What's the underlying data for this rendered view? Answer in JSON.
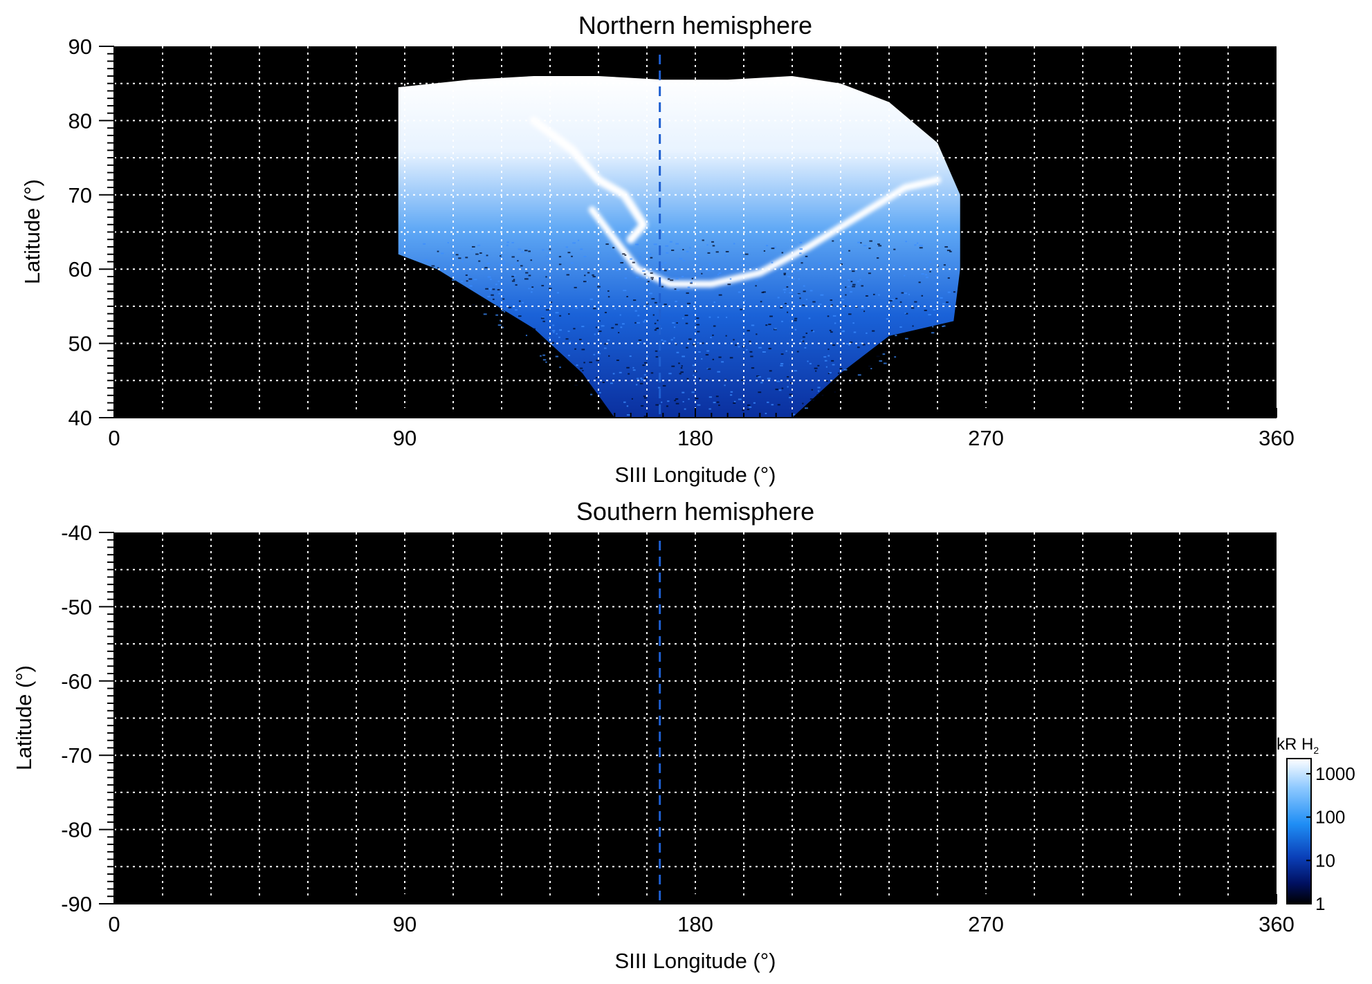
{
  "chart_data": [
    {
      "type": "heatmap",
      "title": "Northern hemisphere",
      "xlabel": "SIII Longitude (°)",
      "ylabel": "Latitude (°)",
      "xlim": [
        0,
        360
      ],
      "ylim": [
        40,
        90
      ],
      "xticks": [
        0,
        90,
        180,
        270,
        360
      ],
      "yticks": [
        40,
        50,
        60,
        70,
        80,
        90
      ],
      "grid": true,
      "background": "#000000",
      "reference_longitude": 169,
      "reference_line_color": "#1e5fd0",
      "emission_region": {
        "description_free": true,
        "upper_boundary": [
          [
            88,
            84.5
          ],
          [
            110,
            85.5
          ],
          [
            130,
            86
          ],
          [
            150,
            86
          ],
          [
            170,
            85.5
          ],
          [
            190,
            85.5
          ],
          [
            210,
            86
          ],
          [
            225,
            85
          ],
          [
            240,
            82.5
          ],
          [
            255,
            77
          ],
          [
            262,
            70
          ],
          [
            262,
            60
          ],
          [
            260,
            53
          ]
        ],
        "lower_boundary": [
          [
            88,
            62
          ],
          [
            100,
            60
          ],
          [
            115,
            56
          ],
          [
            130,
            52
          ],
          [
            145,
            46
          ],
          [
            155,
            40
          ],
          [
            210,
            40
          ],
          [
            225,
            46
          ],
          [
            240,
            51
          ],
          [
            260,
            53
          ]
        ]
      },
      "main_oval": [
        [
          148,
          68
        ],
        [
          155,
          64
        ],
        [
          162,
          60
        ],
        [
          172,
          58
        ],
        [
          185,
          58
        ],
        [
          200,
          59.5
        ],
        [
          215,
          63
        ],
        [
          230,
          67
        ],
        [
          245,
          71
        ],
        [
          255,
          72
        ]
      ],
      "swirl_arc": [
        [
          130,
          80
        ],
        [
          142,
          76
        ],
        [
          150,
          72
        ],
        [
          158,
          70
        ],
        [
          164,
          66
        ],
        [
          160,
          64
        ]
      ]
    },
    {
      "type": "heatmap",
      "title": "Southern hemisphere",
      "xlabel": "SIII Longitude (°)",
      "ylabel": "Latitude (°)",
      "xlim": [
        0,
        360
      ],
      "ylim": [
        -90,
        -40
      ],
      "xticks": [
        0,
        90,
        180,
        270,
        360
      ],
      "yticks": [
        -90,
        -80,
        -70,
        -60,
        -50,
        -40
      ],
      "grid": true,
      "background": "#000000",
      "reference_longitude": 169,
      "reference_line_color": "#1e5fd0"
    }
  ],
  "colorbar": {
    "label": "kR H",
    "label_subscript": "2",
    "scale": "log",
    "ticks": [
      "1000",
      "100",
      "10",
      "1"
    ],
    "colors": [
      "#ffffff",
      "#8ec9ff",
      "#1f8ef5",
      "#0a3fb8",
      "#001060",
      "#000000"
    ]
  }
}
